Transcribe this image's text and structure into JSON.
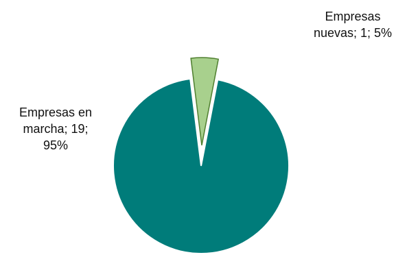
{
  "chart_data": {
    "type": "pie",
    "title": "",
    "slices": [
      {
        "label": "Empresas en marcha",
        "value": 19,
        "percent": "95%",
        "data_label_lines": [
          "Empresas en",
          "marcha; 19;",
          "95%"
        ],
        "color": "#007c7a",
        "stroke": "#ffffff",
        "exploded": false
      },
      {
        "label": "Empresas nuevas",
        "value": 1,
        "percent": "5%",
        "data_label_lines": [
          "Empresas",
          "nuevas; 1; 5%"
        ],
        "color": "#a8d08d",
        "stroke": "#4f7f2f",
        "exploded": true
      }
    ],
    "legend": "none",
    "data_labels": "outside"
  }
}
